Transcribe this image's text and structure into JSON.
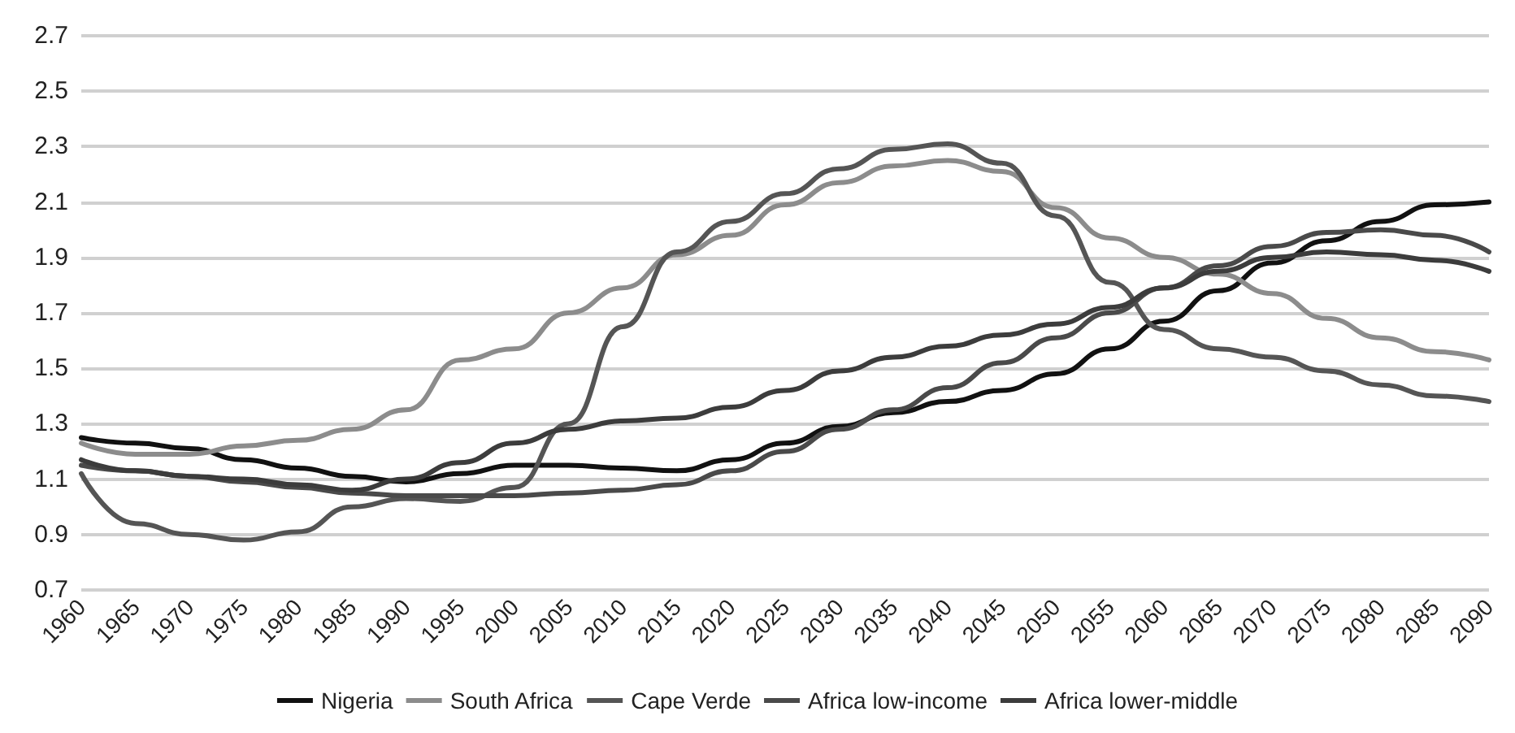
{
  "chart_data": {
    "type": "line",
    "categories": [
      "1960",
      "1965",
      "1970",
      "1975",
      "1980",
      "1985",
      "1990",
      "1995",
      "2000",
      "2005",
      "2010",
      "2015",
      "2020",
      "2025",
      "2030",
      "2035",
      "2040",
      "2045",
      "2050",
      "2055",
      "2060",
      "2065",
      "2070",
      "2075",
      "2080",
      "2085",
      "2090"
    ],
    "series": [
      {
        "name": "Nigeria",
        "color": "#111111",
        "values": [
          1.25,
          1.23,
          1.21,
          1.17,
          1.14,
          1.11,
          1.09,
          1.12,
          1.15,
          1.15,
          1.14,
          1.13,
          1.17,
          1.23,
          1.29,
          1.34,
          1.38,
          1.42,
          1.48,
          1.57,
          1.67,
          1.78,
          1.88,
          1.96,
          2.03,
          2.09,
          2.1
        ]
      },
      {
        "name": "South Africa",
        "color": "#8c8c8c",
        "values": [
          1.23,
          1.19,
          1.19,
          1.22,
          1.24,
          1.28,
          1.35,
          1.53,
          1.57,
          1.7,
          1.79,
          1.91,
          1.98,
          2.09,
          2.17,
          2.23,
          2.25,
          2.21,
          2.08,
          1.97,
          1.9,
          1.84,
          1.77,
          1.68,
          1.61,
          1.56,
          1.53
        ]
      },
      {
        "name": "Cape Verde",
        "color": "#555555",
        "values": [
          1.12,
          0.94,
          0.9,
          0.88,
          0.91,
          1.0,
          1.03,
          1.02,
          1.07,
          1.3,
          1.65,
          1.92,
          2.03,
          2.13,
          2.22,
          2.29,
          2.31,
          2.24,
          2.05,
          1.81,
          1.64,
          1.57,
          1.54,
          1.49,
          1.44,
          1.4,
          1.38
        ]
      },
      {
        "name": "Africa low-income",
        "color": "#4a4a4a",
        "values": [
          1.15,
          1.13,
          1.11,
          1.09,
          1.07,
          1.05,
          1.04,
          1.04,
          1.04,
          1.05,
          1.06,
          1.08,
          1.13,
          1.2,
          1.28,
          1.35,
          1.43,
          1.52,
          1.61,
          1.7,
          1.79,
          1.87,
          1.94,
          1.99,
          2.0,
          1.98,
          1.92
        ]
      },
      {
        "name": "Africa lower-middle",
        "color": "#3c3c3c",
        "values": [
          1.17,
          1.13,
          1.11,
          1.1,
          1.08,
          1.06,
          1.1,
          1.16,
          1.23,
          1.28,
          1.31,
          1.32,
          1.36,
          1.42,
          1.49,
          1.54,
          1.58,
          1.62,
          1.66,
          1.72,
          1.79,
          1.85,
          1.9,
          1.92,
          1.91,
          1.89,
          1.85
        ]
      }
    ],
    "ylim": [
      0.7,
      2.7
    ],
    "yticks": [
      0.7,
      0.9,
      1.1,
      1.3,
      1.5,
      1.7,
      1.9,
      2.1,
      2.3,
      2.5,
      2.7
    ],
    "grid": "y",
    "legend": "bottom",
    "marker": "none",
    "line_style": "solid"
  }
}
